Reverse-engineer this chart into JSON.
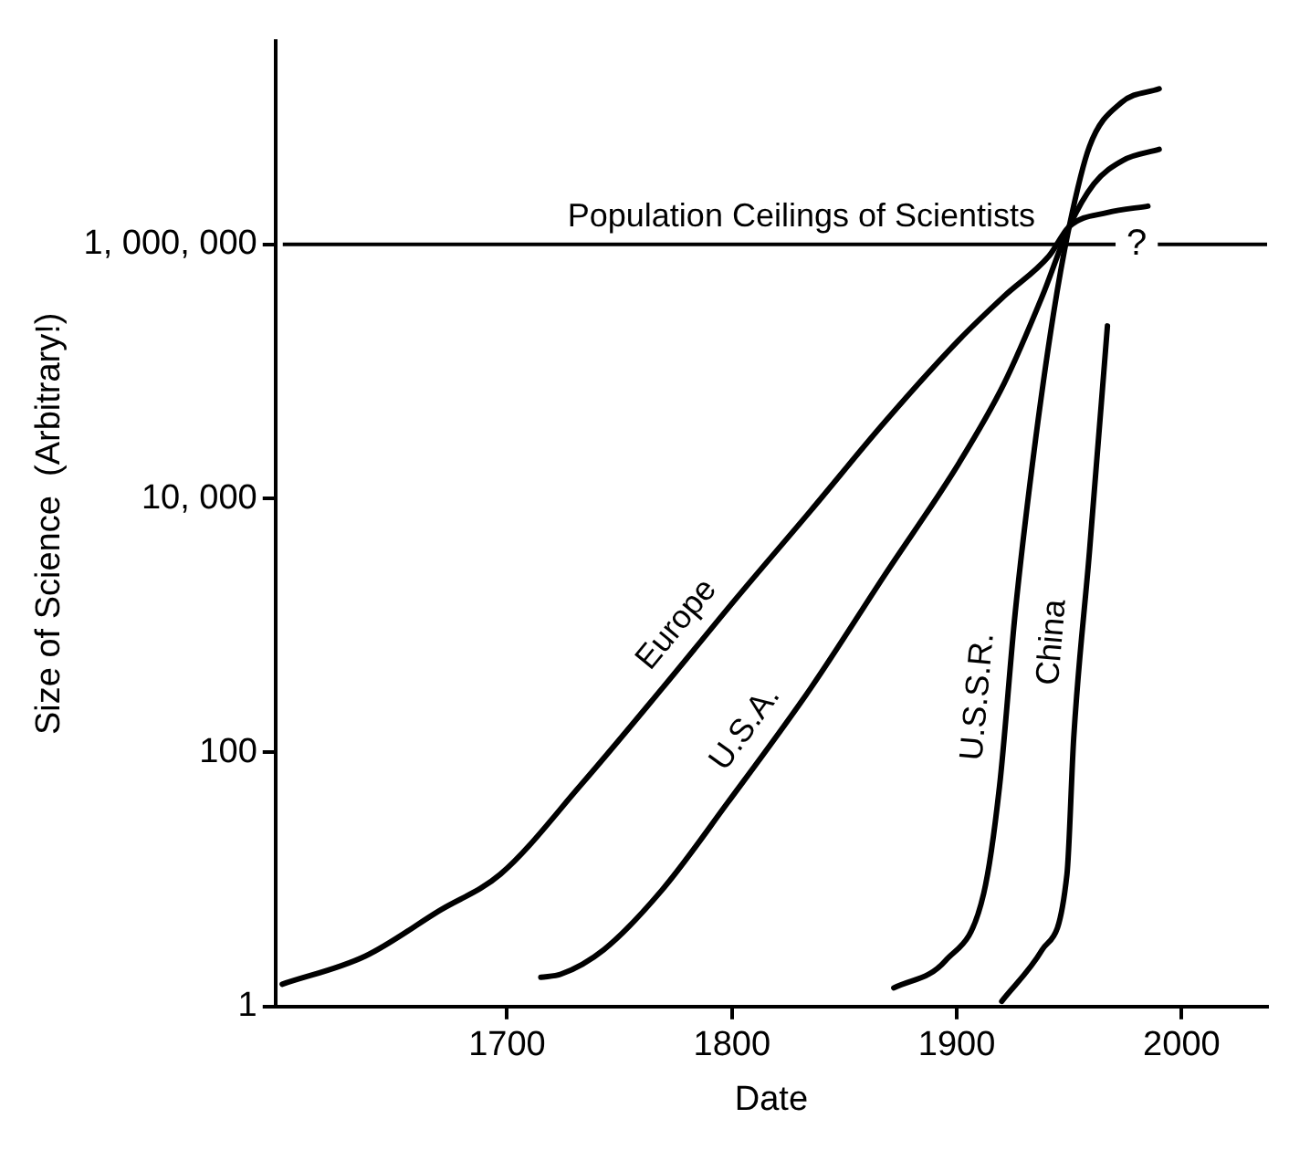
{
  "chart_data": {
    "type": "line",
    "xlabel": "Date",
    "ylabel": "Size of Science  (Arbitrary!)",
    "log": "y",
    "grid": false,
    "legend": false,
    "marker": "none",
    "line_style": "solid",
    "xlim": [
      1597,
      2038
    ],
    "xticks": [
      1700,
      1800,
      1900,
      2000
    ],
    "ylim": [
      1,
      40000000
    ],
    "yticks": [
      {
        "value": 1,
        "label": "1"
      },
      {
        "value": 100,
        "label": "100"
      },
      {
        "value": 10000,
        "label": "10, 000"
      },
      {
        "value": 1000000,
        "label": "1, 000, 000"
      }
    ],
    "series": [
      {
        "name": "Europe",
        "color": "#000000",
        "x": [
          1600,
          1637,
          1670,
          1697,
          1733,
          1769,
          1802,
          1835,
          1868,
          1901,
          1921,
          1941,
          1950,
          1967,
          1985
        ],
        "values": [
          1.5,
          2.5,
          5.7,
          11,
          56,
          320,
          1640,
          8000,
          40000,
          177000,
          390000,
          810000,
          1380000,
          1780000,
          2000000
        ]
      },
      {
        "name": "U.S.A.",
        "color": "#000000",
        "x": [
          1715,
          1724,
          1743,
          1769,
          1798,
          1835,
          1868,
          1901,
          1921,
          1938,
          1950,
          1961,
          1974,
          1990
        ],
        "values": [
          1.7,
          1.8,
          2.8,
          8.3,
          40,
          320,
          2500,
          19000,
          80000,
          390000,
          1380000,
          3000000,
          4600000,
          5600000
        ]
      },
      {
        "name": "U.S.S.R.",
        "color": "#000000",
        "x": [
          1872,
          1895,
          1912,
          1919,
          1926,
          1934,
          1943,
          1950,
          1959,
          1973,
          1990
        ],
        "values": [
          1.4,
          2.3,
          7.8,
          54,
          1270,
          21000,
          284000,
          1380000,
          5900000,
          13000000,
          16800000
        ]
      },
      {
        "name": "China",
        "color": "#000000",
        "x": [
          1920,
          1938,
          1949,
          1952,
          1959,
          1967
        ],
        "values": [
          1.1,
          2.8,
          11,
          130,
          3800,
          228000
        ]
      }
    ],
    "ref_lines": [
      {
        "axis": "y",
        "value": 1000000,
        "label": "Population Ceilings of Scientists"
      }
    ],
    "annotations": [
      {
        "text": "?",
        "x": 1980,
        "y": 1000000
      }
    ]
  }
}
